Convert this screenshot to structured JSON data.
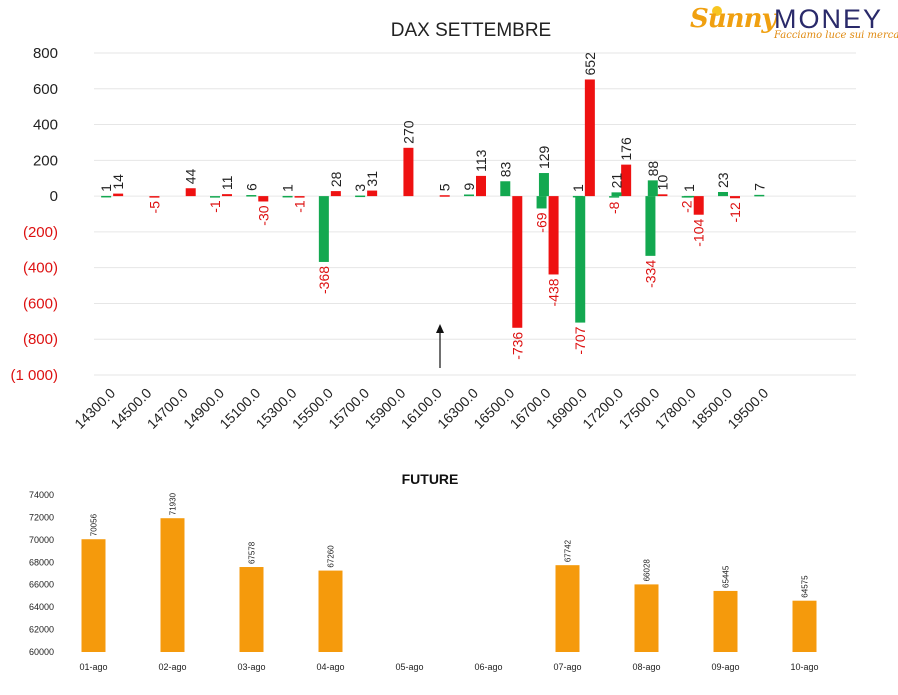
{
  "logo": {
    "brand_left": "Sunny",
    "brand_right": "MONEY",
    "tagline": "Facciamo luce sui mercati"
  },
  "colors": {
    "negative": "#ee1111",
    "positive": "#13a850",
    "future": "#f59a0c",
    "axis_text_red": "#dd1111",
    "grid": "#e6e6e6"
  },
  "chart_data": [
    {
      "type": "bar",
      "title": "DAX SETTEMBRE",
      "categories": [
        "14300.0",
        "14500.0",
        "14700.0",
        "14900.0",
        "15100.0",
        "15300.0",
        "15500.0",
        "15700.0",
        "15900.0",
        "16100.0",
        "16300.0",
        "16500.0",
        "16700.0",
        "16900.0",
        "17200.0",
        "17500.0",
        "17800.0",
        "18500.0",
        "19500.0"
      ],
      "y_ticks": [
        "800",
        "600",
        "400",
        "200",
        "0",
        "(200)",
        "(400)",
        "(600)",
        "(800)",
        "(1 000)"
      ],
      "y_tick_values": [
        800,
        600,
        400,
        200,
        0,
        -200,
        -400,
        -600,
        -800,
        -1000
      ],
      "ylim": [
        -1000,
        800
      ],
      "grid": true,
      "series": [
        {
          "color": "negative",
          "values": [
            14,
            -5,
            44,
            11,
            -30,
            -1,
            28,
            31,
            270,
            5,
            113,
            -736,
            -438,
            652,
            176,
            10,
            -104,
            -12,
            null
          ]
        },
        {
          "color": "positive",
          "values": [
            1,
            null,
            null,
            -1,
            6,
            1,
            -368,
            3,
            null,
            null,
            9,
            83,
            -69,
            1,
            -8,
            -334,
            -2,
            23,
            7
          ]
        }
      ],
      "negative_series_index": 0,
      "positive_series_index": 1,
      "extra_green": [
        {
          "slot": 16.5,
          "value": 129
        },
        {
          "slot": 17.5,
          "value": -707
        },
        {
          "slot": 18.5,
          "value": 21
        },
        {
          "slot": 19.5,
          "value": 88
        },
        {
          "slot": 20.5,
          "value": 1
        }
      ],
      "annotation": "arrow-up"
    },
    {
      "type": "bar",
      "title": "FUTURE",
      "categories": [
        "01-ago",
        "02-ago",
        "03-ago",
        "04-ago",
        "05-ago",
        "06-ago",
        "07-ago",
        "08-ago",
        "09-ago",
        "10-ago"
      ],
      "values": [
        70056,
        71930,
        67578,
        67260,
        null,
        null,
        67742,
        66028,
        65445,
        64575
      ],
      "ylim": [
        60000,
        74000
      ],
      "y_ticks": [
        60000,
        62000,
        64000,
        66000,
        68000,
        70000,
        72000,
        74000
      ],
      "grid": false
    }
  ]
}
